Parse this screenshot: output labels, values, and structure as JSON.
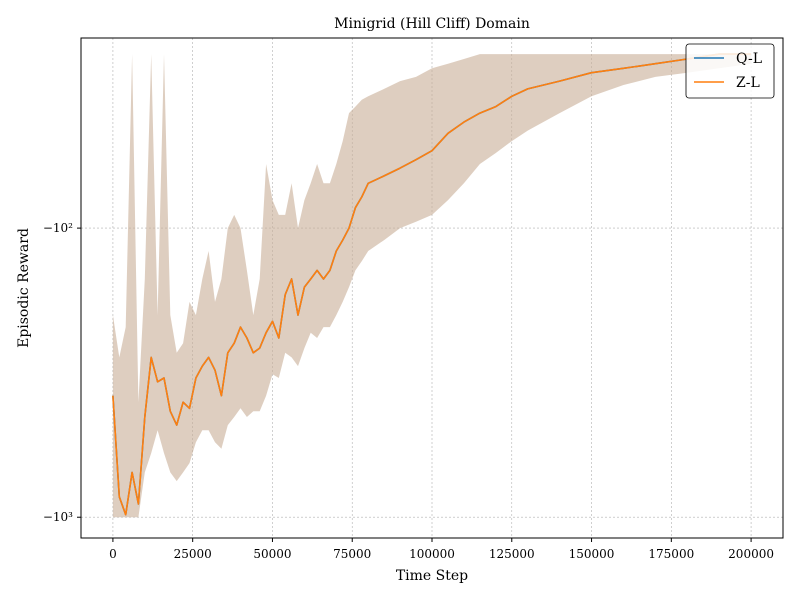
{
  "chart_data": {
    "type": "line",
    "title": "Minigrid (Hill Cliff) Domain",
    "xlabel": "Time Step",
    "ylabel": "Episodic Reward",
    "xlim": [
      -10000,
      210000
    ],
    "x_ticks": [
      0,
      25000,
      50000,
      75000,
      100000,
      125000,
      150000,
      175000,
      200000
    ],
    "x_tick_labels": [
      "0",
      "25000",
      "50000",
      "75000",
      "100000",
      "125000",
      "150000",
      "175000",
      "200000"
    ],
    "y_scale": "symlog",
    "ylim": [
      -1180,
      -22
    ],
    "y_ticks": [
      -100,
      -1000
    ],
    "y_tick_labels": [
      "−10²",
      "−10³"
    ],
    "grid": true,
    "legend_position": "top-right",
    "series": [
      {
        "name": "Q-L",
        "color": "#1f77b4",
        "x": [
          0,
          2000,
          4000,
          6000,
          8000,
          10000,
          12000,
          14000,
          16000,
          18000,
          20000,
          22000,
          24000,
          26000,
          28000,
          30000,
          32000,
          34000,
          36000,
          38000,
          40000,
          42000,
          44000,
          46000,
          48000,
          50000,
          52000,
          54000,
          56000,
          58000,
          60000,
          62000,
          64000,
          66000,
          68000,
          70000,
          72000,
          74000,
          76000,
          78000,
          80000,
          85000,
          90000,
          95000,
          100000,
          105000,
          110000,
          115000,
          120000,
          125000,
          130000,
          140000,
          150000,
          160000,
          170000,
          180000,
          190000,
          200000
        ],
        "y": [
          -380,
          -850,
          -980,
          -700,
          -900,
          -450,
          -280,
          -340,
          -330,
          -430,
          -480,
          -400,
          -420,
          -330,
          -300,
          -280,
          -310,
          -380,
          -270,
          -250,
          -220,
          -240,
          -270,
          -260,
          -230,
          -210,
          -240,
          -170,
          -150,
          -200,
          -160,
          -150,
          -140,
          -150,
          -140,
          -120,
          -110,
          -100,
          -85,
          -78,
          -70,
          -66,
          -62,
          -58,
          -54,
          -47,
          -43,
          -40,
          -38,
          -35,
          -33,
          -31,
          -29,
          -28,
          -27,
          -26,
          -25,
          -25
        ]
      },
      {
        "name": "Z-L",
        "color": "#ff7f0e",
        "x": [
          0,
          2000,
          4000,
          6000,
          8000,
          10000,
          12000,
          14000,
          16000,
          18000,
          20000,
          22000,
          24000,
          26000,
          28000,
          30000,
          32000,
          34000,
          36000,
          38000,
          40000,
          42000,
          44000,
          46000,
          48000,
          50000,
          52000,
          54000,
          56000,
          58000,
          60000,
          62000,
          64000,
          66000,
          68000,
          70000,
          72000,
          74000,
          76000,
          78000,
          80000,
          85000,
          90000,
          95000,
          100000,
          105000,
          110000,
          115000,
          120000,
          125000,
          130000,
          140000,
          150000,
          160000,
          170000,
          180000,
          190000,
          200000
        ],
        "y": [
          -380,
          -850,
          -980,
          -700,
          -900,
          -450,
          -280,
          -340,
          -330,
          -430,
          -480,
          -400,
          -420,
          -330,
          -300,
          -280,
          -310,
          -380,
          -270,
          -250,
          -220,
          -240,
          -270,
          -260,
          -230,
          -210,
          -240,
          -170,
          -150,
          -200,
          -160,
          -150,
          -140,
          -150,
          -140,
          -120,
          -110,
          -100,
          -85,
          -78,
          -70,
          -66,
          -62,
          -58,
          -54,
          -47,
          -43,
          -40,
          -38,
          -35,
          -33,
          -31,
          -29,
          -28,
          -27,
          -26,
          -25,
          -25
        ]
      }
    ],
    "band": {
      "color": "#c8ad96",
      "opacity": 0.6,
      "x": [
        0,
        2000,
        4000,
        6000,
        8000,
        10000,
        12000,
        14000,
        16000,
        18000,
        20000,
        22000,
        24000,
        26000,
        28000,
        30000,
        32000,
        34000,
        36000,
        38000,
        40000,
        42000,
        44000,
        46000,
        48000,
        50000,
        52000,
        54000,
        56000,
        58000,
        60000,
        62000,
        64000,
        66000,
        68000,
        70000,
        72000,
        74000,
        76000,
        78000,
        80000,
        85000,
        90000,
        95000,
        100000,
        105000,
        110000,
        115000,
        120000,
        125000,
        130000,
        140000,
        150000,
        160000,
        170000,
        180000,
        190000,
        200000
      ],
      "upper": [
        -200,
        -280,
        -220,
        -25,
        -400,
        -150,
        -25,
        -200,
        -25,
        -200,
        -270,
        -250,
        -180,
        -200,
        -150,
        -120,
        -180,
        -150,
        -100,
        -90,
        -100,
        -140,
        -200,
        -150,
        -60,
        -80,
        -90,
        -90,
        -70,
        -100,
        -80,
        -70,
        -60,
        -70,
        -70,
        -60,
        -50,
        -40,
        -38,
        -36,
        -35,
        -33,
        -31,
        -30,
        -28,
        -27,
        -26,
        -25,
        -25,
        -25,
        -25,
        -25,
        -25,
        -25,
        -25,
        -25,
        -25,
        -25
      ],
      "lower": [
        -1000,
        -1000,
        -1000,
        -1000,
        -1000,
        -700,
        -600,
        -500,
        -600,
        -700,
        -750,
        -700,
        -650,
        -550,
        -500,
        -500,
        -550,
        -580,
        -480,
        -450,
        -420,
        -450,
        -430,
        -430,
        -380,
        -320,
        -330,
        -270,
        -280,
        -300,
        -260,
        -230,
        -240,
        -220,
        -220,
        -200,
        -180,
        -160,
        -140,
        -130,
        -120,
        -110,
        -100,
        -95,
        -90,
        -80,
        -70,
        -60,
        -55,
        -50,
        -46,
        -40,
        -35,
        -32,
        -30,
        -29,
        -28,
        -27
      ]
    }
  }
}
